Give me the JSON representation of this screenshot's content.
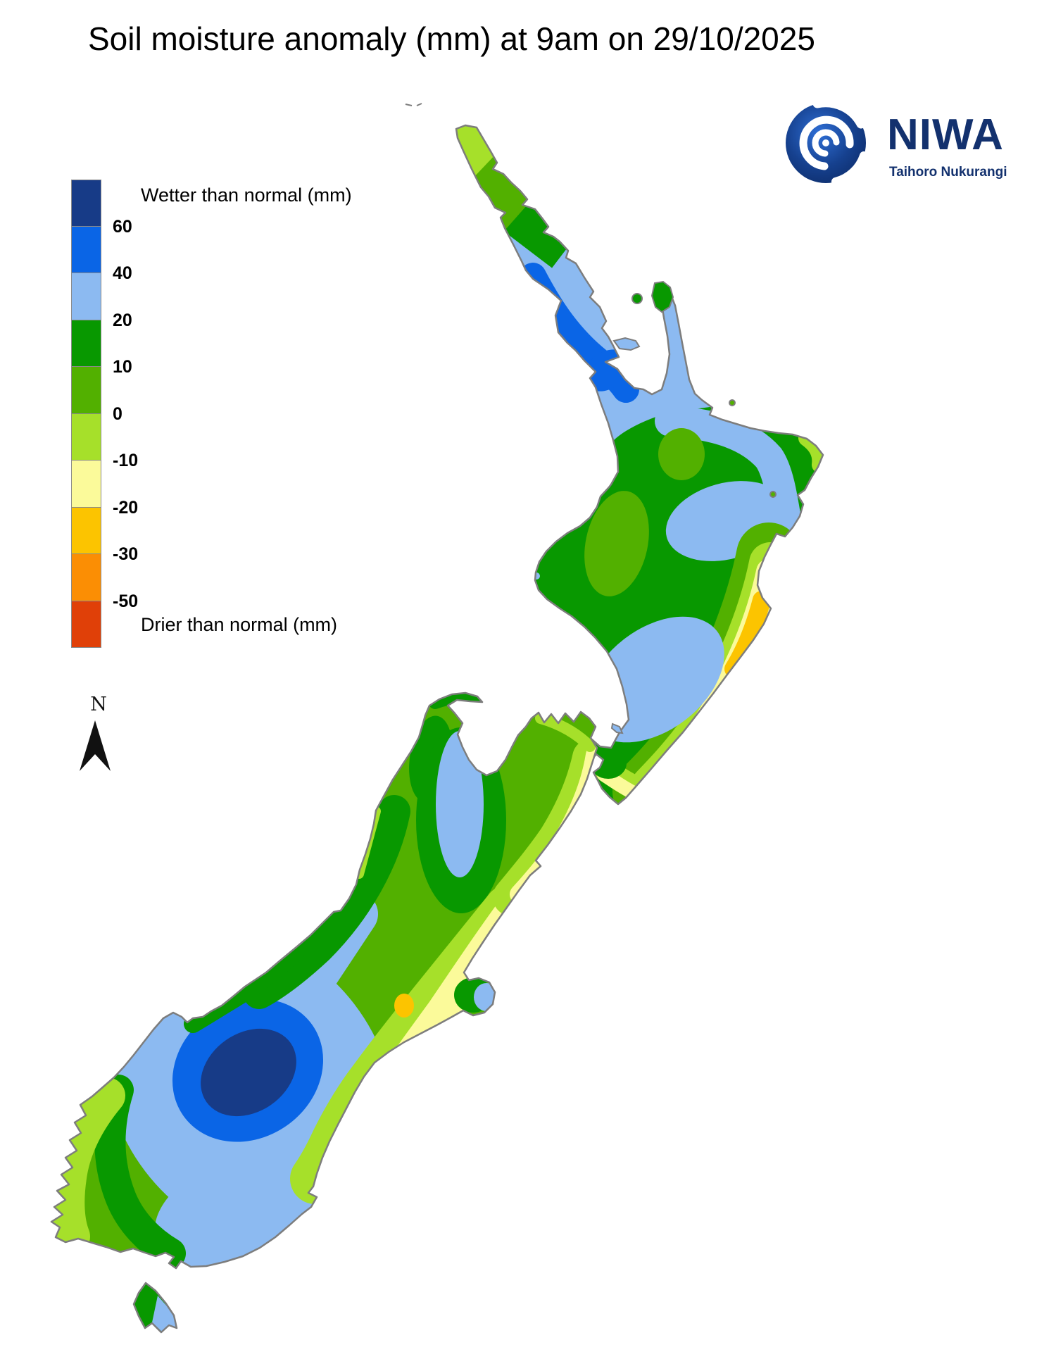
{
  "title": "Soil moisture anomaly (mm) at 9am on 29/10/2025",
  "legend": {
    "wetter_label": "Wetter than normal (mm)",
    "drier_label": "Drier than normal (mm)",
    "ticks": [
      "60",
      "40",
      "20",
      "10",
      "0",
      "-10",
      "-20",
      "-30",
      "-50"
    ],
    "swatch_colors": [
      "#173b87",
      "#0a65e6",
      "#8cbaf1",
      "#089800",
      "#52b000",
      "#a6e02a",
      "#fbfa9a",
      "#fcc400",
      "#fb8e04",
      "#e04008"
    ]
  },
  "compass": {
    "label": "N"
  },
  "logo": {
    "name": "NIWA",
    "tagline": "Taihoro Nukurangi",
    "brand_color": "#13316e"
  },
  "colors": {
    "navy": "#173b87",
    "blue": "#0a65e6",
    "lightblue": "#8cbaf1",
    "green": "#089800",
    "midgreen": "#52b000",
    "lime": "#a6e02a",
    "paleyellow": "#fbfa9a",
    "amber": "#fcc400",
    "orange": "#fb8e04",
    "red": "#e04008",
    "coast": "#7d7d7d",
    "ink": "#111111"
  }
}
